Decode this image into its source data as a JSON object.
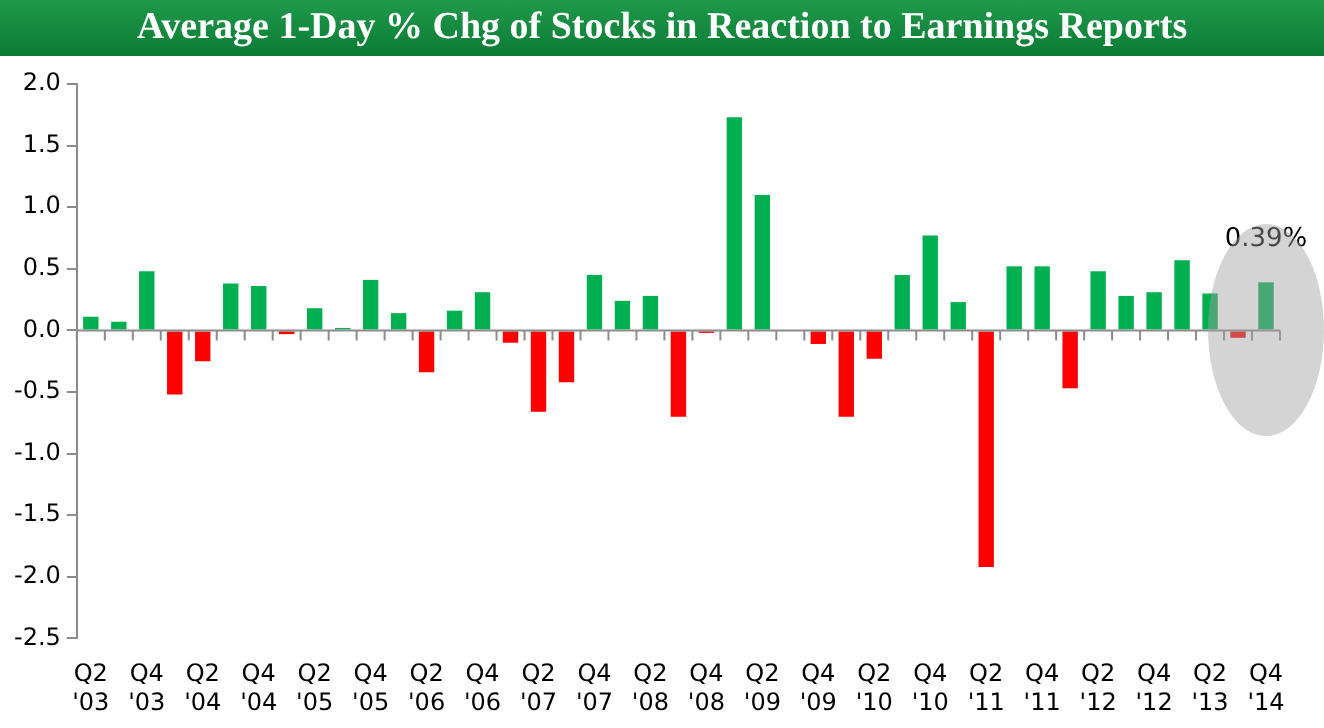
{
  "chart_data": {
    "type": "bar",
    "title": "Average 1-Day % Chg of Stocks in Reaction to Earnings Reports",
    "categories": [
      "Q2 '03",
      null,
      "Q4 '03",
      null,
      "Q2 '04",
      null,
      "Q4 '04",
      null,
      "Q2 '05",
      null,
      "Q4 '05",
      null,
      "Q2 '06",
      null,
      "Q4 '06",
      null,
      "Q2 '07",
      null,
      "Q4 '07",
      null,
      "Q2 '08",
      null,
      "Q4 '08",
      null,
      "Q2 '09",
      null,
      "Q4 '09",
      null,
      "Q2 '10",
      null,
      "Q4 '10",
      null,
      "Q2 '11",
      null,
      "Q4 '11",
      null,
      "Q2 '12",
      null,
      "Q4 '12",
      null,
      "Q2 '13",
      null,
      "Q4 '14"
    ],
    "values": [
      0.11,
      0.07,
      0.48,
      -0.52,
      -0.25,
      0.38,
      0.36,
      -0.03,
      0.18,
      0.02,
      0.41,
      0.14,
      -0.34,
      0.16,
      0.31,
      -0.1,
      -0.66,
      -0.42,
      0.45,
      0.24,
      0.28,
      -0.7,
      -0.02,
      1.73,
      1.1,
      0,
      -0.11,
      -0.7,
      -0.23,
      0.45,
      0.77,
      0.23,
      -1.92,
      0.52,
      0.52,
      -0.47,
      0.48,
      0.28,
      0.31,
      0.57,
      0.3,
      -0.06,
      0.39
    ],
    "colors": [
      "#00b050",
      "#00b050",
      "#00b050",
      "#ff0000",
      "#ff0000",
      "#00b050",
      "#00b050",
      "#ff0000",
      "#00b050",
      "#00b050",
      "#00b050",
      "#00b050",
      "#ff0000",
      "#00b050",
      "#00b050",
      "#ff0000",
      "#ff0000",
      "#ff0000",
      "#00b050",
      "#00b050",
      "#00b050",
      "#ff0000",
      "#ff0000",
      "#00b050",
      "#00b050",
      "#00b050",
      "#ff0000",
      "#ff0000",
      "#ff0000",
      "#00b050",
      "#00b050",
      "#00b050",
      "#ff0000",
      "#00b050",
      "#00b050",
      "#ff0000",
      "#00b050",
      "#00b050",
      "#00b050",
      "#00b050",
      "#00b050",
      "#ff0000",
      "#00b050"
    ],
    "ylim": [
      -2.5,
      2.0
    ],
    "yticks": [
      {
        "value": -2.5,
        "label": "-2.5"
      },
      {
        "value": -2,
        "label": "-2.0"
      },
      {
        "value": -1.5,
        "label": "-1.5"
      },
      {
        "value": -1,
        "label": "-1.0"
      },
      {
        "value": -0.5,
        "label": "-0.5"
      },
      {
        "value": 0,
        "label": "0.0"
      },
      {
        "value": 0.5,
        "label": "0.5"
      },
      {
        "value": 1,
        "label": "1.0"
      },
      {
        "value": 1.5,
        "label": "1.5"
      },
      {
        "value": 2,
        "label": "2.0"
      }
    ],
    "annotations": [
      {
        "text": "0.39%",
        "x": "Q4 '14",
        "y": 0.39
      }
    ]
  }
}
